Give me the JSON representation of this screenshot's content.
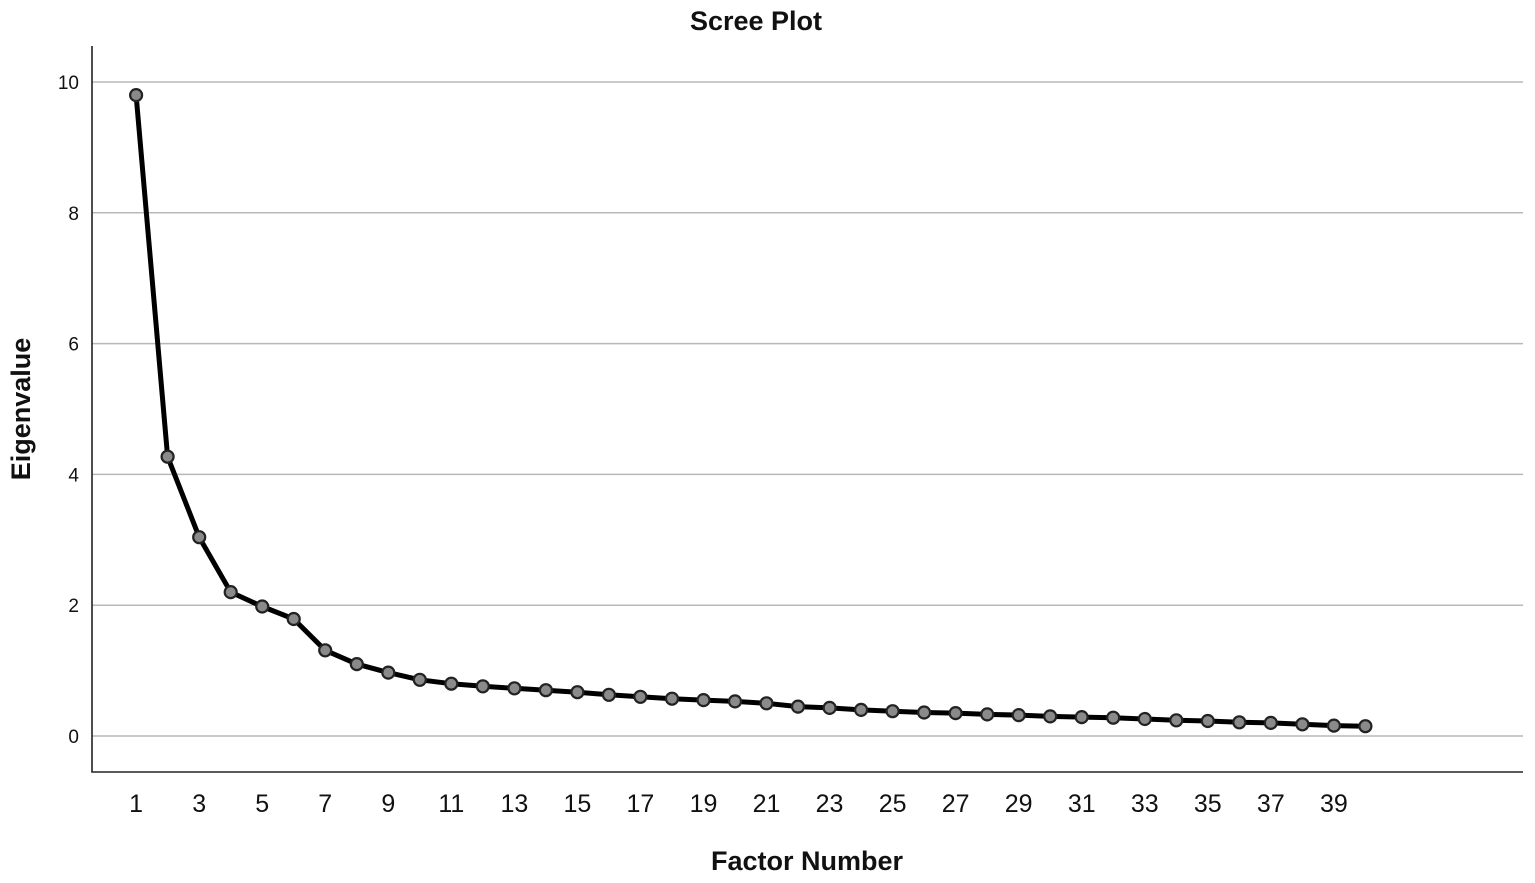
{
  "chart_data": {
    "type": "line",
    "title": "Scree Plot",
    "xlabel": "Factor Number",
    "ylabel": "Eigenvalue",
    "x": [
      1,
      2,
      3,
      4,
      5,
      6,
      7,
      8,
      9,
      10,
      11,
      12,
      13,
      14,
      15,
      16,
      17,
      18,
      19,
      20,
      21,
      22,
      23,
      24,
      25,
      26,
      27,
      28,
      29,
      30,
      31,
      32,
      33,
      34,
      35,
      36,
      37,
      38,
      39,
      40
    ],
    "values": [
      9.8,
      4.27,
      3.04,
      2.2,
      1.98,
      1.79,
      1.31,
      1.1,
      0.97,
      0.86,
      0.8,
      0.76,
      0.73,
      0.7,
      0.67,
      0.63,
      0.6,
      0.57,
      0.55,
      0.53,
      0.5,
      0.45,
      0.43,
      0.4,
      0.38,
      0.36,
      0.35,
      0.33,
      0.32,
      0.3,
      0.29,
      0.28,
      0.26,
      0.24,
      0.23,
      0.21,
      0.2,
      0.18,
      0.16,
      0.15
    ],
    "xticks": [
      "1",
      "3",
      "5",
      "7",
      "9",
      "11",
      "13",
      "15",
      "17",
      "19",
      "21",
      "23",
      "25",
      "27",
      "29",
      "31",
      "33",
      "35",
      "37",
      "39"
    ],
    "yticks": [
      "0",
      "2",
      "4",
      "6",
      "8",
      "10"
    ],
    "xlim": [
      -0.4,
      45
    ],
    "ylim": [
      -0.55,
      10.55
    ],
    "grid": "horizontal",
    "line_color": "#000000",
    "marker_color": "#8a8a8a"
  }
}
